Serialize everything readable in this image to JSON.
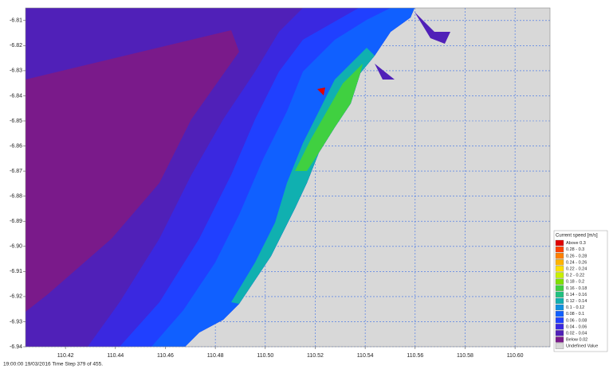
{
  "chart_data": {
    "type": "contour-map",
    "xlim": [
      110.404,
      110.614
    ],
    "ylim": [
      -6.94,
      -6.805
    ],
    "xticks": [
      110.42,
      110.44,
      110.46,
      110.48,
      {
        "value": 110.5,
        "label": "110.50"
      },
      110.52,
      110.54,
      110.56,
      110.58,
      {
        "value": 110.6,
        "label": "110.60"
      }
    ],
    "yticks": [
      -6.81,
      -6.82,
      -6.83,
      -6.84,
      -6.85,
      -6.86,
      -6.87,
      -6.88,
      -6.89,
      {
        "value": -6.9,
        "label": "-6.90"
      },
      -6.91,
      -6.92,
      -6.93,
      -6.94
    ],
    "grid": true,
    "legend": {
      "title": "Current speed [m/s]",
      "items": [
        {
          "label": "Above 0.3",
          "color": "#e00000"
        },
        {
          "label": "0.28 - 0.3",
          "color": "#ff4000"
        },
        {
          "label": "0.26 - 0.28",
          "color": "#ff8000"
        },
        {
          "label": "0.24 - 0.26",
          "color": "#ffb400"
        },
        {
          "label": "0.22 - 0.24",
          "color": "#ffe000"
        },
        {
          "label": "0.2 - 0.22",
          "color": "#c8f000"
        },
        {
          "label": "0.18 - 0.2",
          "color": "#80e000"
        },
        {
          "label": "0.16 - 0.18",
          "color": "#40d040"
        },
        {
          "label": "0.14 - 0.16",
          "color": "#20c080"
        },
        {
          "label": "0.12 - 0.14",
          "color": "#10b0b0"
        },
        {
          "label": "0.1 - 0.12",
          "color": "#1090e0"
        },
        {
          "label": "0.08 - 0.1",
          "color": "#1060ff"
        },
        {
          "label": "0.06 - 0.08",
          "color": "#2040ff"
        },
        {
          "label": "0.04 - 0.06",
          "color": "#3a28e0"
        },
        {
          "label": "0.02 - 0.04",
          "color": "#5020b8"
        },
        {
          "label": "Below 0.02",
          "color": "#7a1a8a"
        },
        {
          "label": "Undefined Value",
          "color": "#d8d8d8"
        }
      ]
    },
    "footer": "19:00:00 19/03/2016  Time Step 379 of 455."
  }
}
